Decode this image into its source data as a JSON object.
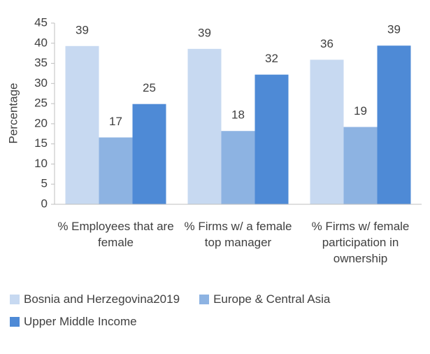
{
  "chart_data": {
    "type": "bar",
    "y_label": "Percentage",
    "categories": [
      "% Employees that are female",
      "% Firms w/ a female top manager",
      "% Firms w/ female participation in ownership"
    ],
    "series": [
      {
        "name": "Bosnia and Herzegovina2019",
        "color": "#c7d9f1",
        "values": [
          39.3,
          38.6,
          35.9
        ],
        "value_labels": [
          "39",
          "39",
          "36"
        ]
      },
      {
        "name": "Europe & Central Asia",
        "color": "#8db3e2",
        "values": [
          16.6,
          18.2,
          19.2
        ],
        "value_labels": [
          "17",
          "18",
          "19"
        ]
      },
      {
        "name": "Upper Middle Income",
        "color": "#4e8ad6",
        "values": [
          24.9,
          32.2,
          39.4
        ],
        "value_labels": [
          "25",
          "32",
          "39"
        ]
      }
    ],
    "ylim": [
      0,
      45
    ],
    "yticks": [
      0,
      5,
      10,
      15,
      20,
      25,
      30,
      35,
      40,
      45
    ],
    "grid": false,
    "legend": "bottom"
  }
}
